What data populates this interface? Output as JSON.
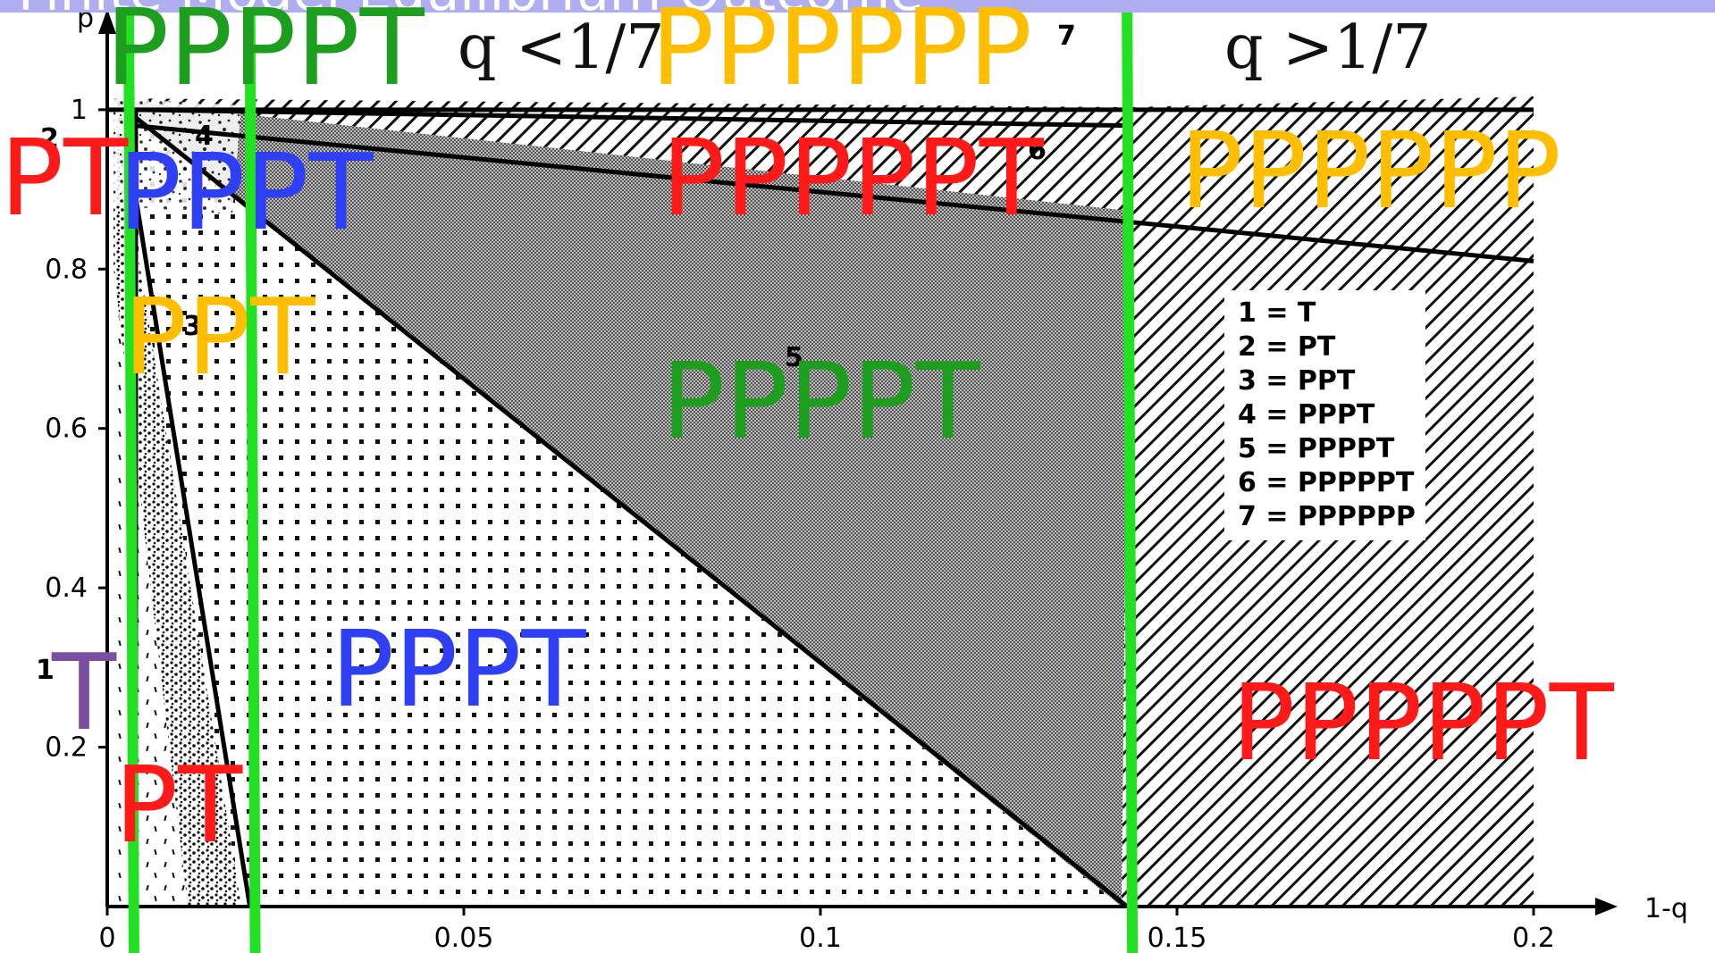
{
  "title": "Finite Model Equilibrium Outcome",
  "colors": {
    "red": "#ff1a1a",
    "green": "#1e9e1e",
    "blue": "#2f3ff5",
    "yellow": "#ffbf00",
    "purple": "#7b4ea2",
    "guide": "#22e022",
    "title_bar": "#aeaef0"
  },
  "annotations": {
    "q_lt": "q <1/7",
    "q_gt": "q >1/7"
  },
  "chart_data": {
    "type": "area",
    "title": "",
    "xlabel": "1-q",
    "ylabel": "p",
    "xlim": [
      0,
      0.2
    ],
    "ylim": [
      0,
      1.02
    ],
    "x_ticks": [
      "0",
      "0.05",
      "0.1",
      "0.15",
      "0.2"
    ],
    "y_ticks": [
      "0.2",
      "0.4",
      "0.6",
      "0.8",
      "1"
    ],
    "region_numbers": [
      "1",
      "2",
      "3",
      "4",
      "5",
      "6",
      "7"
    ],
    "legend": [
      "1 = T",
      "2 = PT",
      "3 = PPT",
      "4 = PPPT",
      "5 = PPPPT",
      "6 = PPPPPT",
      "7 = PPPPPP"
    ],
    "legend_position": "right",
    "boundaries": [
      {
        "points": [
          [
            0.004,
            0
          ],
          [
            0.004,
            1.0
          ]
        ]
      },
      {
        "points": [
          [
            0.004,
            0.89
          ],
          [
            0.02,
            0
          ]
        ]
      },
      {
        "points": [
          [
            0.004,
            0.99
          ],
          [
            0.143,
            0
          ]
        ]
      },
      {
        "points": [
          [
            0.004,
            0.98
          ],
          [
            0.2,
            0.81
          ]
        ]
      },
      {
        "points": [
          [
            0.004,
            1.0
          ],
          [
            0.143,
            0.98
          ]
        ]
      },
      {
        "points": [
          [
            0,
            1.0
          ],
          [
            0.2,
            1.0
          ]
        ]
      }
    ],
    "vertical_guides_x": [
      0.003,
      0.02,
      0.143
    ],
    "overlay_labels": [
      {
        "text": "PPPPT",
        "color": "green"
      },
      {
        "text": "PPPPPP",
        "color": "yellow"
      },
      {
        "text": "PT",
        "color": "red"
      },
      {
        "text": "PPPT",
        "color": "blue"
      },
      {
        "text": "PPPPPT",
        "color": "red"
      },
      {
        "text": "PPPPPP",
        "color": "yellow"
      },
      {
        "text": "PPT",
        "color": "yellow"
      },
      {
        "text": "PPPPT",
        "color": "green"
      },
      {
        "text": "T",
        "color": "purple"
      },
      {
        "text": "PPPT",
        "color": "blue"
      },
      {
        "text": "PPPPPT",
        "color": "red"
      },
      {
        "text": "PT",
        "color": "red"
      }
    ]
  }
}
